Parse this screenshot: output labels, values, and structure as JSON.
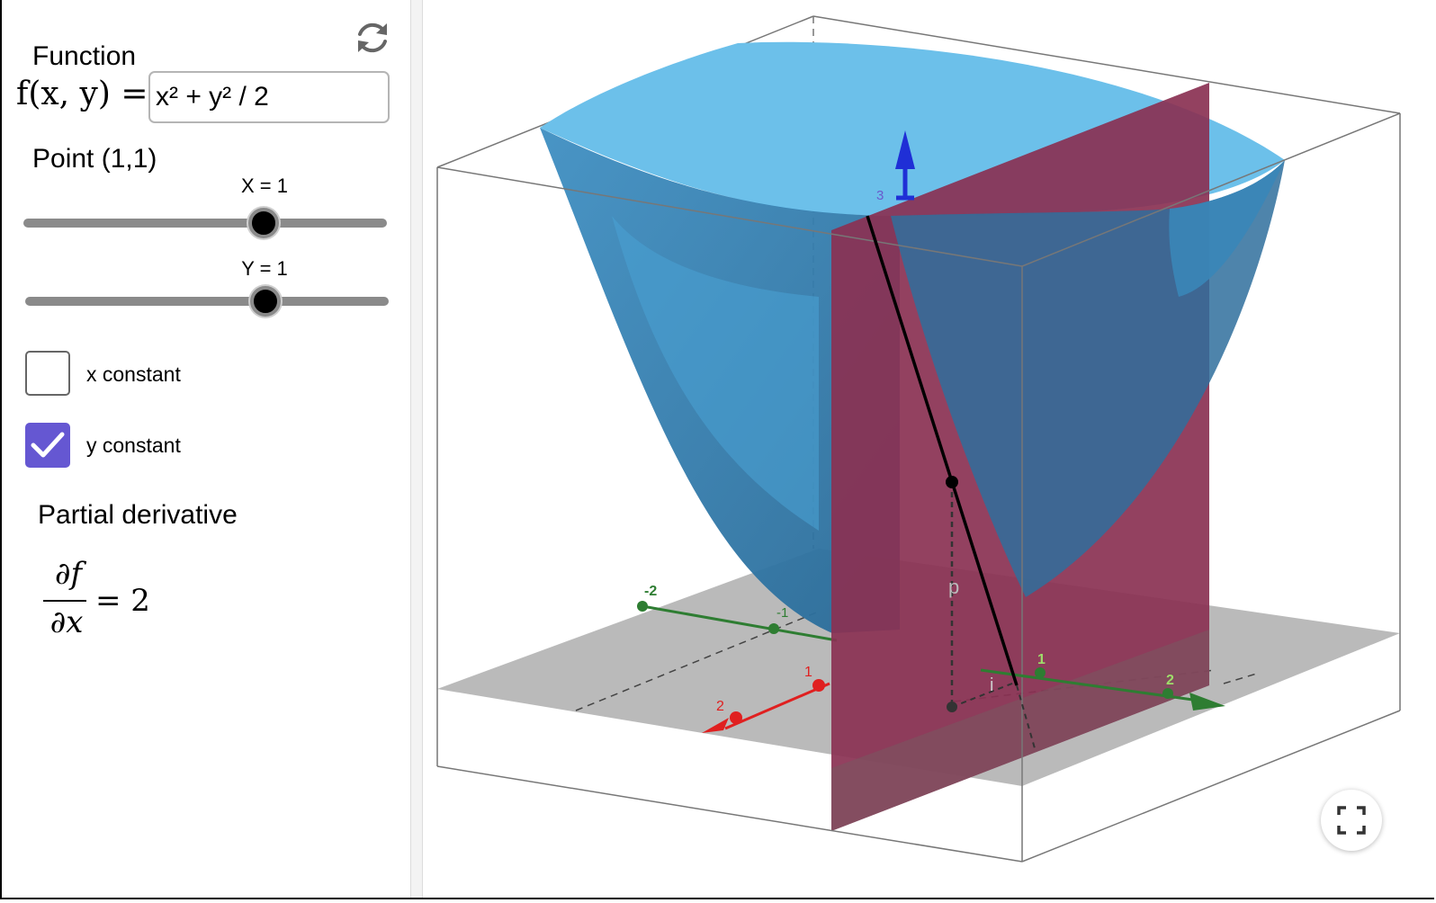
{
  "function_caption": "Function",
  "function_prefix": "f(x, y) =",
  "function_input_value": "x² + y² / 2",
  "point_caption": "Point (1,1)",
  "sliders": {
    "x": {
      "label": "X = 1",
      "value": 1,
      "min": -3,
      "max": 3
    },
    "y": {
      "label": "Y = 1",
      "value": 1,
      "min": -3,
      "max": 3
    }
  },
  "checkboxes": {
    "x_constant": {
      "label": "x constant",
      "checked": false
    },
    "y_constant": {
      "label": "y constant",
      "checked": true
    }
  },
  "derivative": {
    "caption": "Partial derivative",
    "numerator": "∂f",
    "denominator": "∂x",
    "result": "= 2"
  },
  "axes": {
    "x_ticks": [
      "1",
      "2"
    ],
    "y_ticks": [
      "-2",
      "-1",
      "1",
      "2"
    ],
    "z_tick": "3",
    "point_label": "p",
    "i_label": "i"
  },
  "colors": {
    "surface": "#3a93c8",
    "plane": "#8a3152",
    "floor": "#b2b2b2",
    "x_axis": "#e02020",
    "y_axis": "#2e7d32",
    "z_axis": "#1f2fd6",
    "checkbox_accent": "#6557d2"
  },
  "icons": {
    "reset": "refresh-icon",
    "fullscreen": "fullscreen-icon",
    "check": "checkmark-icon"
  }
}
